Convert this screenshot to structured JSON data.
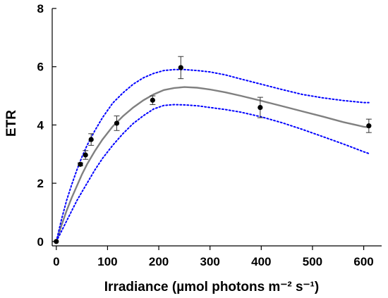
{
  "chart_data": {
    "type": "scatter",
    "title": "",
    "xlabel": "Irradiance (µmol photons m⁻² s⁻¹)",
    "ylabel": "ETR",
    "xlim": [
      -8,
      635
    ],
    "ylim": [
      -0.15,
      8
    ],
    "x_ticks": [
      0,
      100,
      200,
      300,
      400,
      500,
      600
    ],
    "y_ticks": [
      0,
      2,
      4,
      6,
      8
    ],
    "grid": false,
    "legend": "none",
    "colors": {
      "points": "#000000",
      "fit": "#808080",
      "confidence": "#0000ff"
    },
    "series": [
      {
        "kind": "points-with-error-bars",
        "x": [
          0,
          47,
          57,
          68,
          118,
          188,
          243,
          398,
          610
        ],
        "y": [
          0.0,
          2.65,
          2.97,
          3.5,
          4.06,
          4.85,
          5.97,
          4.6,
          3.97
        ],
        "err": [
          0.0,
          0.05,
          0.15,
          0.2,
          0.25,
          0.15,
          0.38,
          0.35,
          0.23
        ]
      },
      {
        "kind": "fit-line",
        "x": [
          0,
          10,
          20,
          30,
          40,
          50,
          60,
          75,
          90,
          110,
          130,
          150,
          170,
          190,
          210,
          230,
          250,
          275,
          300,
          330,
          360,
          400,
          440,
          480,
          520,
          560,
          600,
          610
        ],
        "y": [
          0,
          0.55,
          1.05,
          1.5,
          1.9,
          2.3,
          2.65,
          3.1,
          3.5,
          3.95,
          4.3,
          4.6,
          4.85,
          5.05,
          5.2,
          5.27,
          5.3,
          5.28,
          5.22,
          5.12,
          5.0,
          4.83,
          4.65,
          4.47,
          4.29,
          4.1,
          3.94,
          3.92
        ]
      },
      {
        "kind": "confidence-upper",
        "x": [
          0,
          10,
          20,
          30,
          40,
          50,
          60,
          75,
          90,
          110,
          130,
          150,
          170,
          190,
          210,
          230,
          250,
          275,
          300,
          330,
          360,
          400,
          440,
          480,
          520,
          560,
          600,
          610
        ],
        "y": [
          0,
          0.75,
          1.4,
          1.95,
          2.45,
          2.9,
          3.3,
          3.8,
          4.25,
          4.75,
          5.1,
          5.4,
          5.62,
          5.77,
          5.87,
          5.9,
          5.9,
          5.87,
          5.82,
          5.72,
          5.58,
          5.4,
          5.22,
          5.05,
          4.93,
          4.84,
          4.77,
          4.77
        ]
      },
      {
        "kind": "confidence-lower",
        "x": [
          0,
          10,
          20,
          30,
          40,
          50,
          60,
          75,
          90,
          110,
          130,
          150,
          170,
          190,
          210,
          230,
          250,
          275,
          300,
          330,
          360,
          400,
          440,
          480,
          520,
          560,
          600,
          610
        ],
        "y": [
          0,
          0.35,
          0.7,
          1.05,
          1.4,
          1.7,
          2.0,
          2.45,
          2.85,
          3.3,
          3.7,
          4.05,
          4.32,
          4.55,
          4.67,
          4.7,
          4.69,
          4.66,
          4.6,
          4.53,
          4.44,
          4.28,
          4.08,
          3.85,
          3.6,
          3.35,
          3.08,
          3.02
        ]
      }
    ]
  }
}
